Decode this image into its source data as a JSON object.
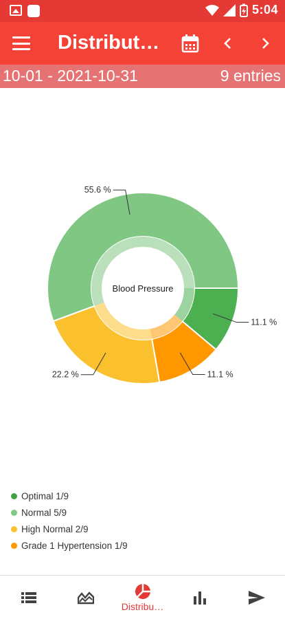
{
  "status_bar": {
    "time": "5:04"
  },
  "app_bar": {
    "title": "Distributi…"
  },
  "range": {
    "text": "10-01 - 2021-10-31",
    "entries": "9 entries"
  },
  "chart_data": {
    "type": "pie",
    "variant": "donut",
    "center_text": "Blood Pressure",
    "categories": [
      "Optimal",
      "Grade 1 Hypertension",
      "High Normal",
      "Normal"
    ],
    "values": [
      11.1,
      11.1,
      22.2,
      55.6
    ],
    "labels": [
      "11.1 %",
      "11.1 %",
      "22.2 %",
      "55.6 %"
    ],
    "colors": [
      "#4caf50",
      "#ff9800",
      "#fbc02d",
      "#81c784"
    ]
  },
  "legend": [
    {
      "label": "Optimal 1/9",
      "color": "#43a047"
    },
    {
      "label": "Normal 5/9",
      "color": "#81c784"
    },
    {
      "label": "High Normal 2/9",
      "color": "#fbc02d"
    },
    {
      "label": "Grade 1 Hypertension 1/9",
      "color": "#ff9800"
    }
  ],
  "bottom_nav": {
    "active_label": "Distribu…"
  },
  "colors": {
    "primary": "#f44336",
    "status": "#e53935",
    "range_bar": "#e57373"
  }
}
